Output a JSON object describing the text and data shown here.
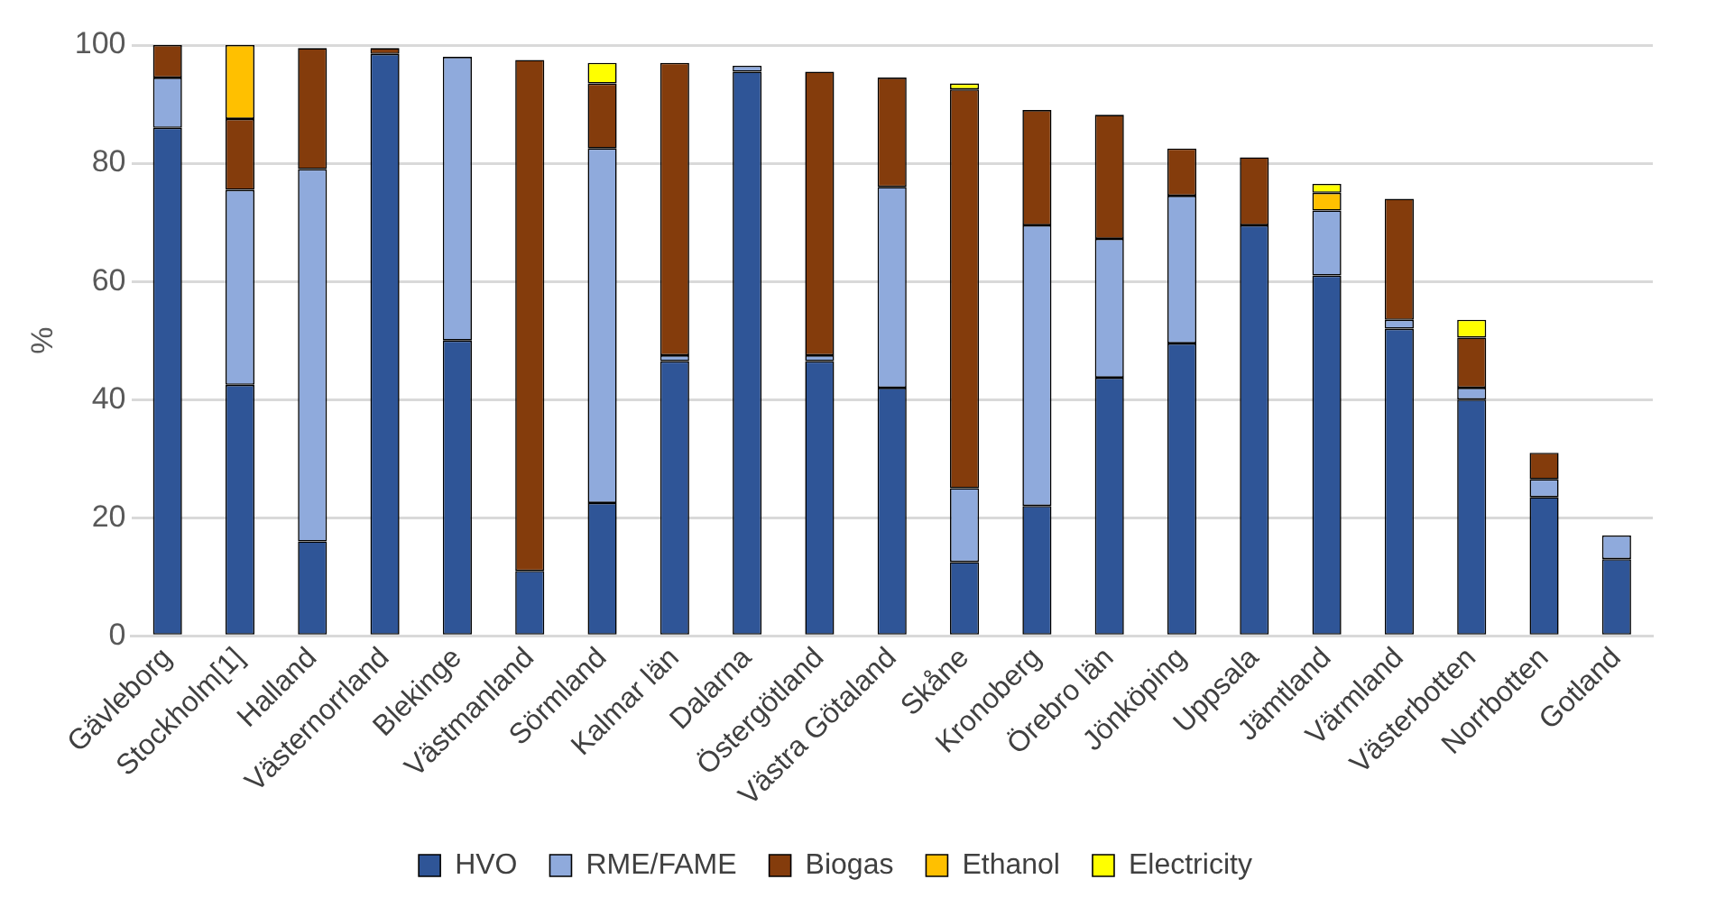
{
  "chart_data": {
    "type": "bar",
    "stacked": true,
    "ylabel": "%",
    "ylim": [
      0,
      100
    ],
    "yticks": [
      0,
      20,
      40,
      60,
      80,
      100
    ],
    "grid": "y",
    "legend": "bottom",
    "categories": [
      "Gävleborg",
      "Stockholm[1]",
      "Halland",
      "Västernorrland",
      "Blekinge",
      "Västmanland",
      "Sörmland",
      "Kalmar län",
      "Dalarna",
      "Östergötland",
      "Västra Götaland",
      "Skåne",
      "Kronoberg",
      "Örebro län",
      "Jönköping",
      "Uppsala",
      "Jämtland",
      "Värmland",
      "Västerbotten",
      "Norrbotten",
      "Gotland"
    ],
    "series": [
      {
        "name": "HVO",
        "color": "#2f5597",
        "values": [
          86,
          42.5,
          16,
          98.5,
          50,
          11,
          22.5,
          46.5,
          95.5,
          46.5,
          42,
          12.5,
          22,
          43.7,
          49.5,
          69.5,
          61,
          52,
          40,
          23.5,
          13
        ]
      },
      {
        "name": "RME/FAME",
        "color": "#8faadc",
        "values": [
          8.5,
          33,
          63,
          null,
          48,
          null,
          60,
          1,
          1,
          1,
          34,
          12.5,
          47.5,
          23.5,
          25,
          null,
          11,
          1.5,
          2,
          3,
          4
        ]
      },
      {
        "name": "Biogas",
        "color": "#843c0c",
        "values": [
          5.5,
          12,
          20.5,
          1,
          null,
          86.5,
          11,
          49.5,
          null,
          48,
          18.5,
          67.5,
          19.5,
          21,
          8,
          11.5,
          null,
          20.5,
          8.5,
          4.5,
          null
        ]
      },
      {
        "name": "Ethanol",
        "color": "#ffc000",
        "values": [
          null,
          12.5,
          null,
          null,
          null,
          null,
          null,
          null,
          null,
          null,
          null,
          null,
          null,
          null,
          null,
          null,
          3,
          null,
          null,
          null,
          null
        ]
      },
      {
        "name": "Electricity",
        "color": "#ffff00",
        "values": [
          null,
          null,
          null,
          null,
          null,
          null,
          3.5,
          null,
          null,
          null,
          null,
          1,
          null,
          null,
          null,
          null,
          1.5,
          null,
          3,
          null,
          null
        ]
      }
    ]
  }
}
